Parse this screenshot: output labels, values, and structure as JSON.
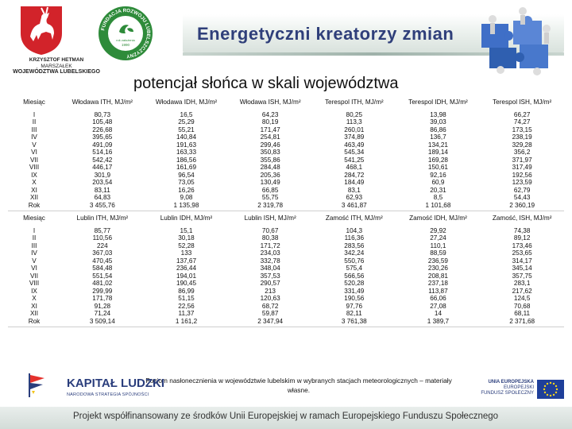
{
  "header": {
    "banner_title": "Energetyczni kreatorzy zmian",
    "left_logo": {
      "line1": "KRZYSZTOF HETMAN",
      "line2": "MARSZAŁEK",
      "line3": "WOJEWÓDZTWA LUBELSKIEGO"
    },
    "round_logo": {
      "ring_text": "FUNDACJA ROZWOJU LUBELSZCZYZNY",
      "inner_text": "rok założenia",
      "year": "1990"
    }
  },
  "title": "potencjał słońca w skali województwa",
  "table1": {
    "headers": [
      "Miesiąc",
      "Włodawa ITH, MJ/m²",
      "Włodawa IDH, MJ/m²",
      "Włodawa ISH, MJ/m²",
      "Terespol ITH, MJ/m²",
      "Terespol IDH, MJ/m²",
      "Terespol ISH, MJ/m²"
    ],
    "rows": [
      [
        "I",
        "80,73",
        "16,5",
        "64,23",
        "80,25",
        "13,98",
        "66,27"
      ],
      [
        "II",
        "105,48",
        "25,29",
        "80,19",
        "113,3",
        "39,03",
        "74,27"
      ],
      [
        "III",
        "226,68",
        "55,21",
        "171,47",
        "260,01",
        "86,86",
        "173,15"
      ],
      [
        "IV",
        "395,65",
        "140,84",
        "254,81",
        "374,89",
        "136,7",
        "238,19"
      ],
      [
        "V",
        "491,09",
        "191,63",
        "299,46",
        "463,49",
        "134,21",
        "329,28"
      ],
      [
        "VI",
        "514,16",
        "163,33",
        "350,83",
        "545,34",
        "189,14",
        "356,2"
      ],
      [
        "VII",
        "542,42",
        "186,56",
        "355,86",
        "541,25",
        "169,28",
        "371,97"
      ],
      [
        "VIII",
        "446,17",
        "161,69",
        "284,48",
        "468,1",
        "150,61",
        "317,49"
      ],
      [
        "IX",
        "301,9",
        "96,54",
        "205,36",
        "284,72",
        "92,16",
        "192,56"
      ],
      [
        "X",
        "203,54",
        "73,05",
        "130,49",
        "184,49",
        "60,9",
        "123,59"
      ],
      [
        "XI",
        "83,11",
        "16,26",
        "66,85",
        "83,1",
        "20,31",
        "62,79"
      ],
      [
        "XII",
        "64,83",
        "9,08",
        "55,75",
        "62,93",
        "8,5",
        "54,43"
      ]
    ],
    "total": [
      "Rok",
      "3 455,76",
      "1 135,98",
      "2 319,78",
      "3 461,87",
      "1 101,68",
      "2 360,19"
    ]
  },
  "table2": {
    "headers": [
      "Miesiąc",
      "Lublin ITH, MJ/m²",
      "Lublin IDH, MJ/m²",
      "Lublin ISH, MJ/m²",
      "Zamość ITH, MJ/m²",
      "Zamość IDH, MJ/m²",
      "Zamość, ISH, MJ/m²"
    ],
    "rows": [
      [
        "I",
        "85,77",
        "15,1",
        "70,67",
        "104,3",
        "29,92",
        "74,38"
      ],
      [
        "II",
        "110,56",
        "30,18",
        "80,38",
        "116,36",
        "27,24",
        "89,12"
      ],
      [
        "III",
        "224",
        "52,28",
        "171,72",
        "283,56",
        "110,1",
        "173,46"
      ],
      [
        "IV",
        "367,03",
        "133",
        "234,03",
        "342,24",
        "88,59",
        "253,65"
      ],
      [
        "V",
        "470,45",
        "137,67",
        "332,78",
        "550,76",
        "236,59",
        "314,17"
      ],
      [
        "VI",
        "584,48",
        "236,44",
        "348,04",
        "575,4",
        "230,26",
        "345,14"
      ],
      [
        "VII",
        "551,54",
        "194,01",
        "357,53",
        "566,56",
        "208,81",
        "357,75"
      ],
      [
        "VIII",
        "481,02",
        "190,45",
        "290,57",
        "520,28",
        "237,18",
        "283,1"
      ],
      [
        "IX",
        "299,99",
        "86,99",
        "213",
        "331,49",
        "113,87",
        "217,62"
      ],
      [
        "X",
        "171,78",
        "51,15",
        "120,63",
        "190,56",
        "66,06",
        "124,5"
      ],
      [
        "XI",
        "91,28",
        "22,56",
        "68,72",
        "97,76",
        "27,08",
        "70,68"
      ],
      [
        "XII",
        "71,24",
        "11,37",
        "59,87",
        "82,11",
        "14",
        "68,11"
      ]
    ],
    "total": [
      "Rok",
      "3 509,14",
      "1 161,2",
      "2 347,94",
      "3 761,38",
      "1 389,7",
      "2 371,68"
    ]
  },
  "footnote": "Poziom nasłonecznienia w województwie lubelskim w wybranych stacjach meteorologicznych – materiały własne.",
  "footer": {
    "kl_title": "KAPITAŁ LUDZKI",
    "kl_subtitle": "NARODOWA STRATEGIA SPÓJNOŚCI",
    "ue_line1": "UNIA EUROPEJSKA",
    "ue_line2": "EUROPEJSKI",
    "ue_line3": "FUNDUSZ SPOŁECZNY",
    "project_text": "Projekt współfinansowany ze środków Unii Europejskiej w ramach Europejskiego Funduszu Społecznego"
  },
  "colors": {
    "banner_title": "#2f3f7a",
    "shield_red": "#d2232a",
    "round_logo_green": "#2e8b3a",
    "eu_blue": "#1f3f9a",
    "eu_star": "#f5d31b"
  }
}
